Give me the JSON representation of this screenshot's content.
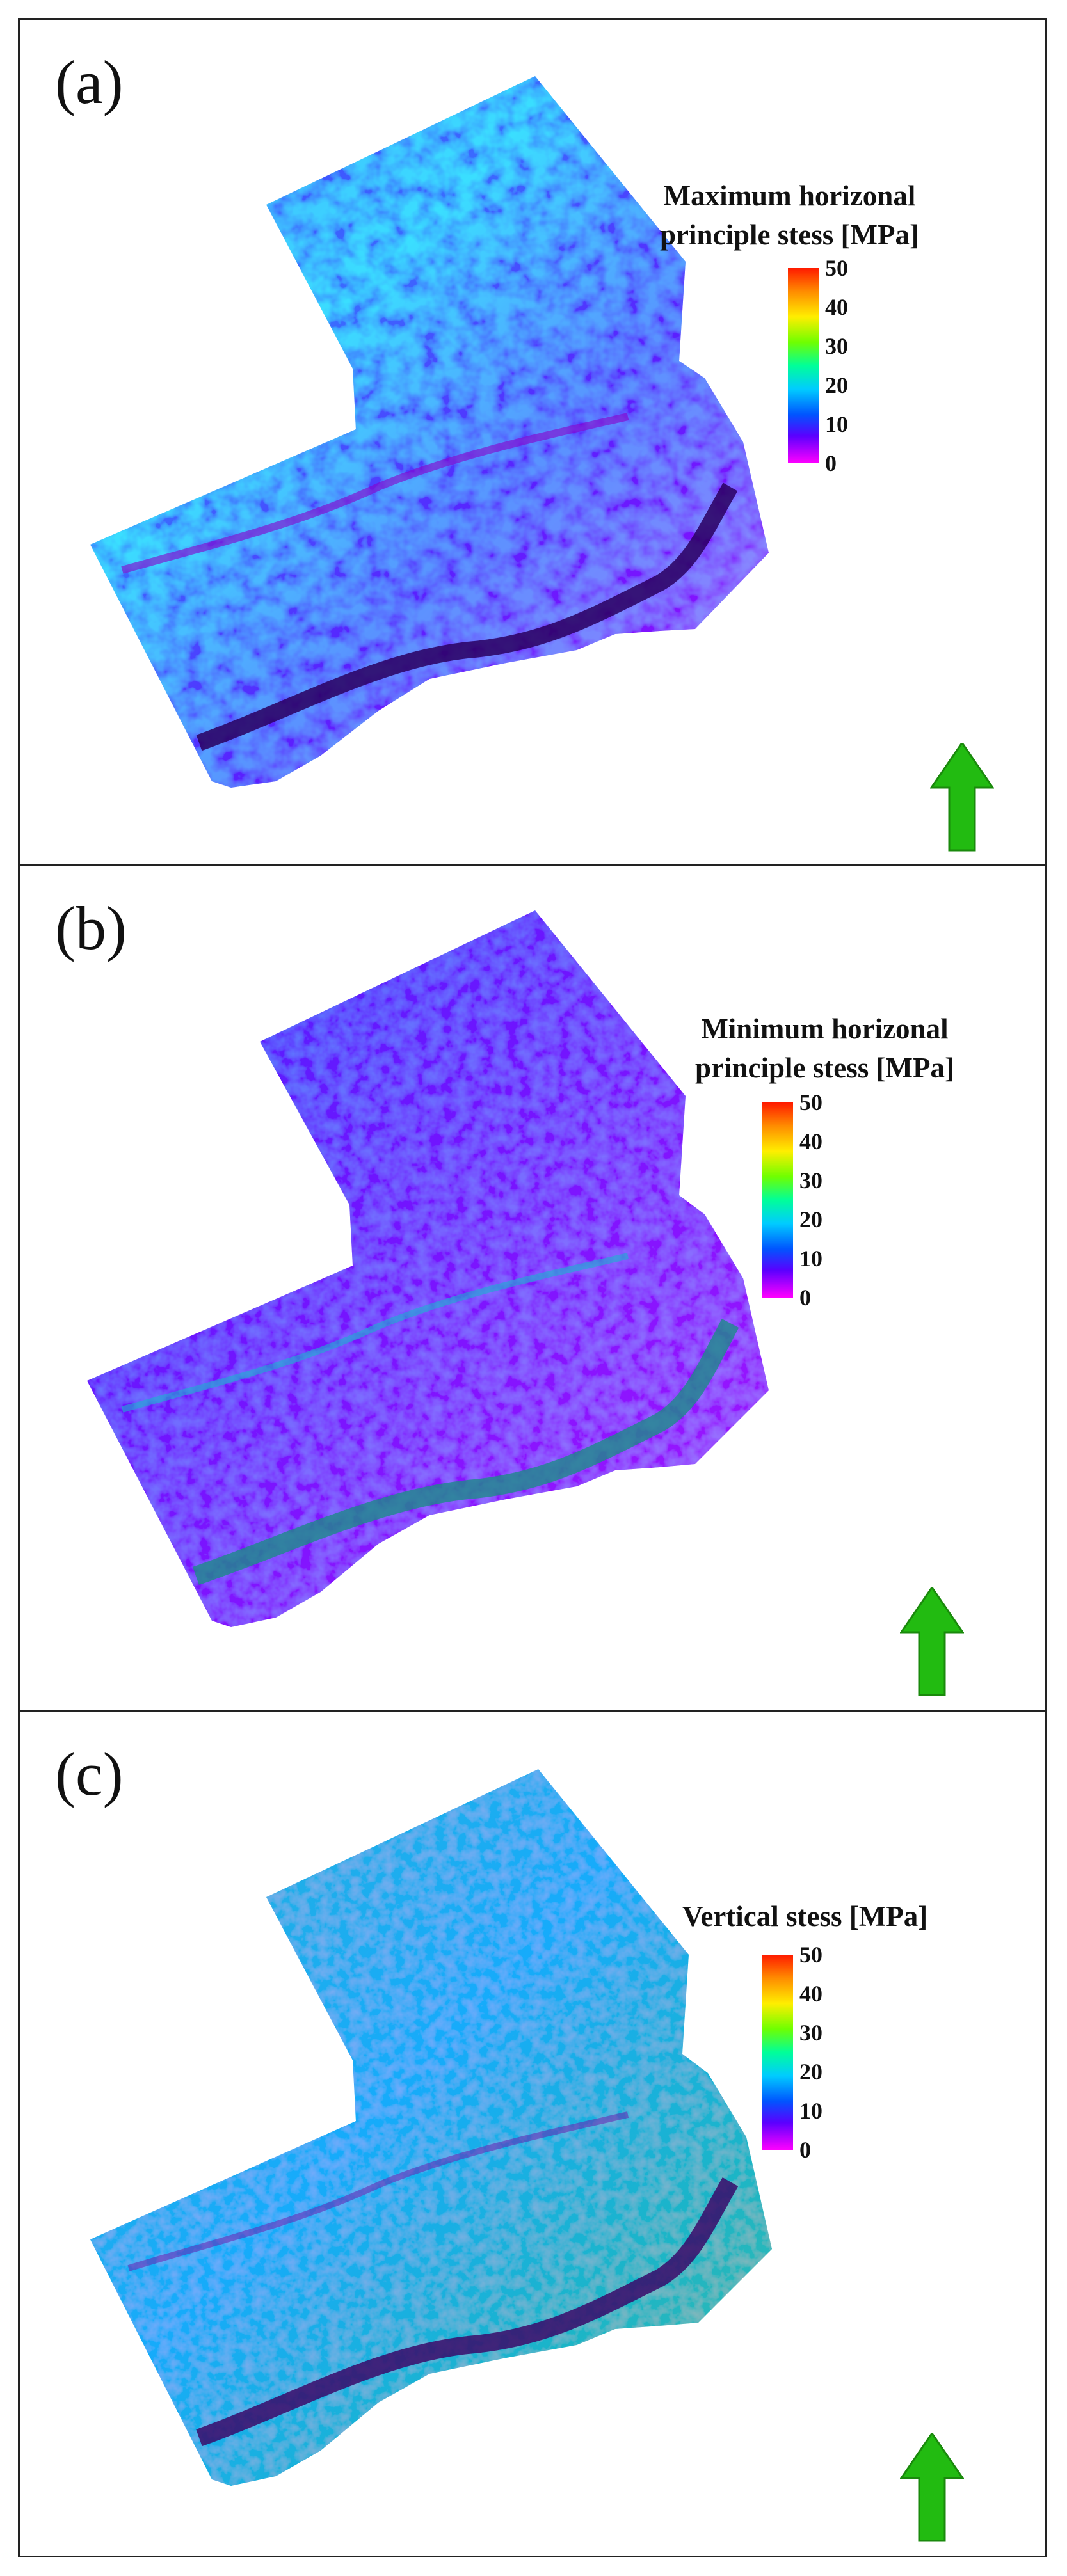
{
  "panels": [
    {
      "id": "a",
      "label": "(a)",
      "legend_title": [
        "Maximum horizonal",
        "principle stess [MPa]"
      ]
    },
    {
      "id": "b",
      "label": "(b)",
      "legend_title": [
        "Minimum horizonal",
        "principle stess [MPa]"
      ]
    },
    {
      "id": "c",
      "label": "(c)",
      "legend_title": [
        "Vertical stess [MPa]"
      ]
    }
  ],
  "colorbar": {
    "ticks": [
      "50",
      "40",
      "30",
      "20",
      "10",
      "0"
    ],
    "colors": [
      "#ff1a00",
      "#ff8c00",
      "#ffee00",
      "#6fff00",
      "#00ff99",
      "#00ccff",
      "#0055ff",
      "#5a00ff",
      "#ff00ff"
    ]
  },
  "north_arrow_color": "#22bb11"
}
